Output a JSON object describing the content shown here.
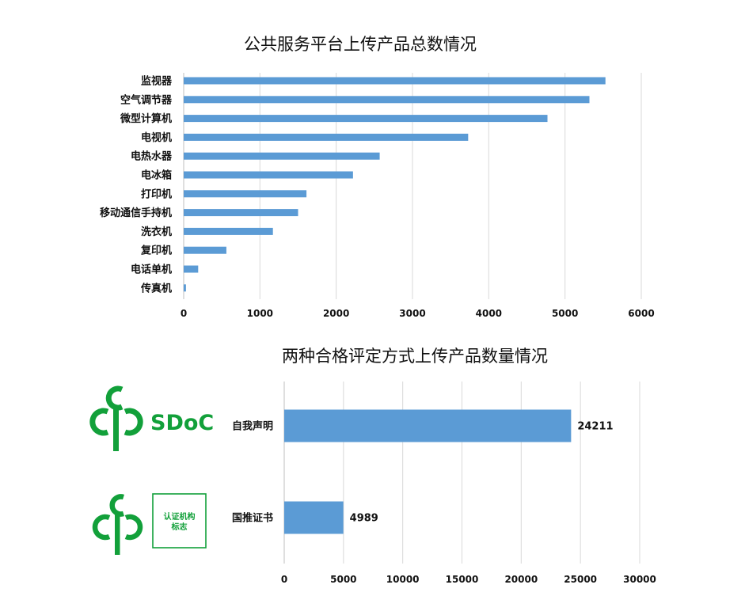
{
  "colors": {
    "bar": "#5b9bd5",
    "grid": "#d9d9d9",
    "logo": "#12a03a"
  },
  "chart_data": [
    {
      "type": "bar",
      "orientation": "horizontal",
      "title": "公共服务平台上传产品总数情况",
      "categories": [
        "监视器",
        "空气调节器",
        "微型计算机",
        "电视机",
        "电热水器",
        "电冰箱",
        "打印机",
        "移动通信手持机",
        "洗衣机",
        "复印机",
        "电话单机",
        "传真机"
      ],
      "values": [
        5530,
        5320,
        4770,
        3730,
        2570,
        2220,
        1610,
        1500,
        1170,
        560,
        190,
        30
      ],
      "xlim": [
        0,
        6000
      ],
      "xticks": [
        0,
        1000,
        2000,
        3000,
        4000,
        5000,
        6000
      ],
      "grid": true,
      "data_labels": false
    },
    {
      "type": "bar",
      "orientation": "horizontal",
      "title": "两种合格评定方式上传产品数量情况",
      "categories": [
        "自我声明",
        "国推证书"
      ],
      "values": [
        24211,
        4989
      ],
      "xlim": [
        0,
        30000
      ],
      "xticks": [
        0,
        5000,
        10000,
        15000,
        20000,
        25000,
        30000
      ],
      "grid": true,
      "data_labels": true
    }
  ],
  "logos": {
    "sdoc": {
      "icon": "ccc-mark-icon",
      "text": "SDoC"
    },
    "cert": {
      "icon": "ccc-mark-icon",
      "box_line1": "认证机构",
      "box_line2": "标志"
    }
  }
}
